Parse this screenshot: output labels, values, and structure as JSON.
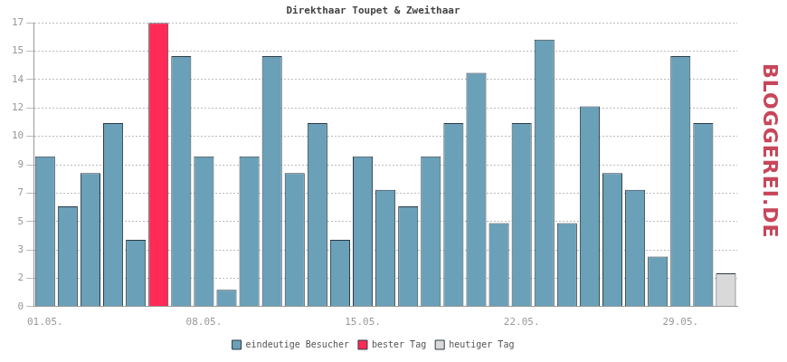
{
  "chart_data": {
    "type": "bar",
    "title": "Direkthaar Toupet & Zweithaar",
    "categories": [
      "01.05.",
      null,
      null,
      null,
      null,
      null,
      null,
      "08.05.",
      null,
      null,
      null,
      null,
      null,
      null,
      "15.05.",
      null,
      null,
      null,
      null,
      null,
      null,
      "22.05.",
      null,
      null,
      null,
      null,
      null,
      null,
      "29.05.",
      null,
      null
    ],
    "series": [
      {
        "name": "eindeutige Besucher",
        "color": "#6aa0b8",
        "values": [
          9,
          6,
          8,
          11,
          4,
          null,
          15,
          9,
          1,
          9,
          15,
          8,
          11,
          4,
          9,
          7,
          6,
          9,
          11,
          14,
          5,
          11,
          16,
          5,
          12,
          8,
          7,
          3,
          15,
          11,
          null
        ]
      },
      {
        "name": "bester Tag",
        "color": "#ff2a55",
        "values": [
          null,
          null,
          null,
          null,
          null,
          17,
          null,
          null,
          null,
          null,
          null,
          null,
          null,
          null,
          null,
          null,
          null,
          null,
          null,
          null,
          null,
          null,
          null,
          null,
          null,
          null,
          null,
          null,
          null,
          null,
          null
        ]
      },
      {
        "name": "heutiger Tag",
        "color": "#d9d9d9",
        "values": [
          null,
          null,
          null,
          null,
          null,
          null,
          null,
          null,
          null,
          null,
          null,
          null,
          null,
          null,
          null,
          null,
          null,
          null,
          null,
          null,
          null,
          null,
          null,
          null,
          null,
          null,
          null,
          null,
          null,
          null,
          2
        ]
      }
    ],
    "ylim": [
      0,
      17
    ],
    "yticks": [
      0,
      {
        "value": 1.7,
        "label": "2"
      },
      {
        "value": 3.4,
        "label": "3"
      },
      {
        "value": 5.1,
        "label": "5"
      },
      {
        "value": 6.8,
        "label": "7"
      },
      {
        "value": 8.5,
        "label": "9"
      },
      {
        "value": 10.2,
        "label": "10"
      },
      {
        "value": 11.9,
        "label": "12"
      },
      {
        "value": 13.6,
        "label": "14"
      },
      {
        "value": 15.3,
        "label": "15"
      },
      17
    ],
    "grid": true,
    "stacked": true,
    "legend": "bottom",
    "annotations": [
      "BLOGGEREI.DE"
    ]
  }
}
